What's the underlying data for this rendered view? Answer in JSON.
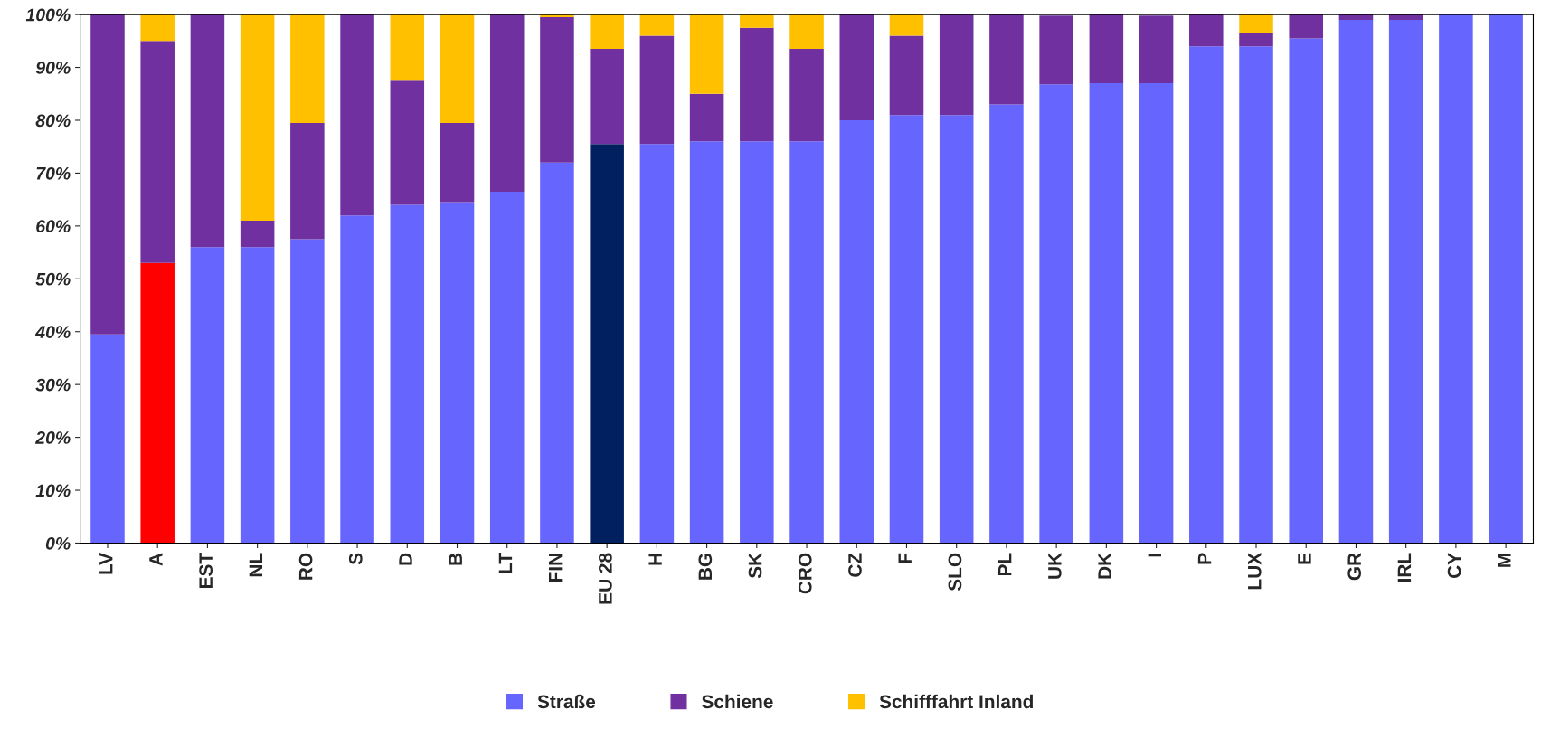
{
  "chart_data": {
    "type": "bar",
    "stacked": true,
    "categories": [
      "LV",
      "A",
      "EST",
      "NL",
      "RO",
      "S",
      "D",
      "B",
      "LT",
      "FIN",
      "EU 28",
      "H",
      "BG",
      "SK",
      "CRO",
      "CZ",
      "F",
      "SLO",
      "PL",
      "UK",
      "DK",
      "I",
      "P",
      "LUX",
      "E",
      "GR",
      "IRL",
      "CY",
      "M"
    ],
    "series": [
      {
        "name": "Straße",
        "color": "#6666ff",
        "colors": [
          "#6666ff",
          "#ff0000",
          "#6666ff",
          "#6666ff",
          "#6666ff",
          "#6666ff",
          "#6666ff",
          "#6666ff",
          "#6666ff",
          "#6666ff",
          "#002060",
          "#6666ff",
          "#6666ff",
          "#6666ff",
          "#6666ff",
          "#6666ff",
          "#6666ff",
          "#6666ff",
          "#6666ff",
          "#6666ff",
          "#6666ff",
          "#6666ff",
          "#6666ff",
          "#6666ff",
          "#6666ff",
          "#6666ff",
          "#6666ff",
          "#6666ff",
          "#6666ff"
        ],
        "values": [
          39.5,
          53,
          56,
          56,
          57.5,
          62,
          64,
          64.5,
          66.5,
          72,
          75.5,
          75.5,
          76,
          76,
          76,
          80,
          81,
          81,
          83,
          86.8,
          87,
          87,
          94,
          94,
          95.5,
          99,
          99,
          100,
          100
        ]
      },
      {
        "name": "Schiene",
        "color": "#7030a0",
        "values": [
          60.5,
          42,
          44,
          5,
          22,
          38,
          23.5,
          15,
          33.5,
          27.5,
          18,
          20.5,
          9,
          21.5,
          17.5,
          20,
          15,
          19,
          17,
          13,
          13,
          12.8,
          6,
          2.5,
          4.5,
          1,
          1,
          0,
          0
        ]
      },
      {
        "name": "Schifffahrt Inland",
        "color": "#ffc000",
        "values": [
          0,
          5,
          0,
          39,
          20.5,
          0,
          12.5,
          20.5,
          0,
          0.5,
          6.5,
          4,
          15,
          2.5,
          6.5,
          0,
          4,
          0,
          0,
          null,
          0,
          null,
          0,
          3.5,
          0,
          0,
          0,
          0,
          0
        ]
      }
    ],
    "ylim": [
      0,
      100
    ],
    "yticks": [
      {
        "value": 0,
        "label": "0%"
      },
      {
        "value": 10,
        "label": "10%"
      },
      {
        "value": 20,
        "label": "20%"
      },
      {
        "value": 30,
        "label": "30%"
      },
      {
        "value": 40,
        "label": "40%"
      },
      {
        "value": 50,
        "label": "50%"
      },
      {
        "value": 60,
        "label": "60%"
      },
      {
        "value": 70,
        "label": "70%"
      },
      {
        "value": 80,
        "label": "80%"
      },
      {
        "value": 90,
        "label": "90%"
      },
      {
        "value": 100,
        "label": "100%"
      }
    ],
    "grid": false,
    "legend": "bottom"
  }
}
